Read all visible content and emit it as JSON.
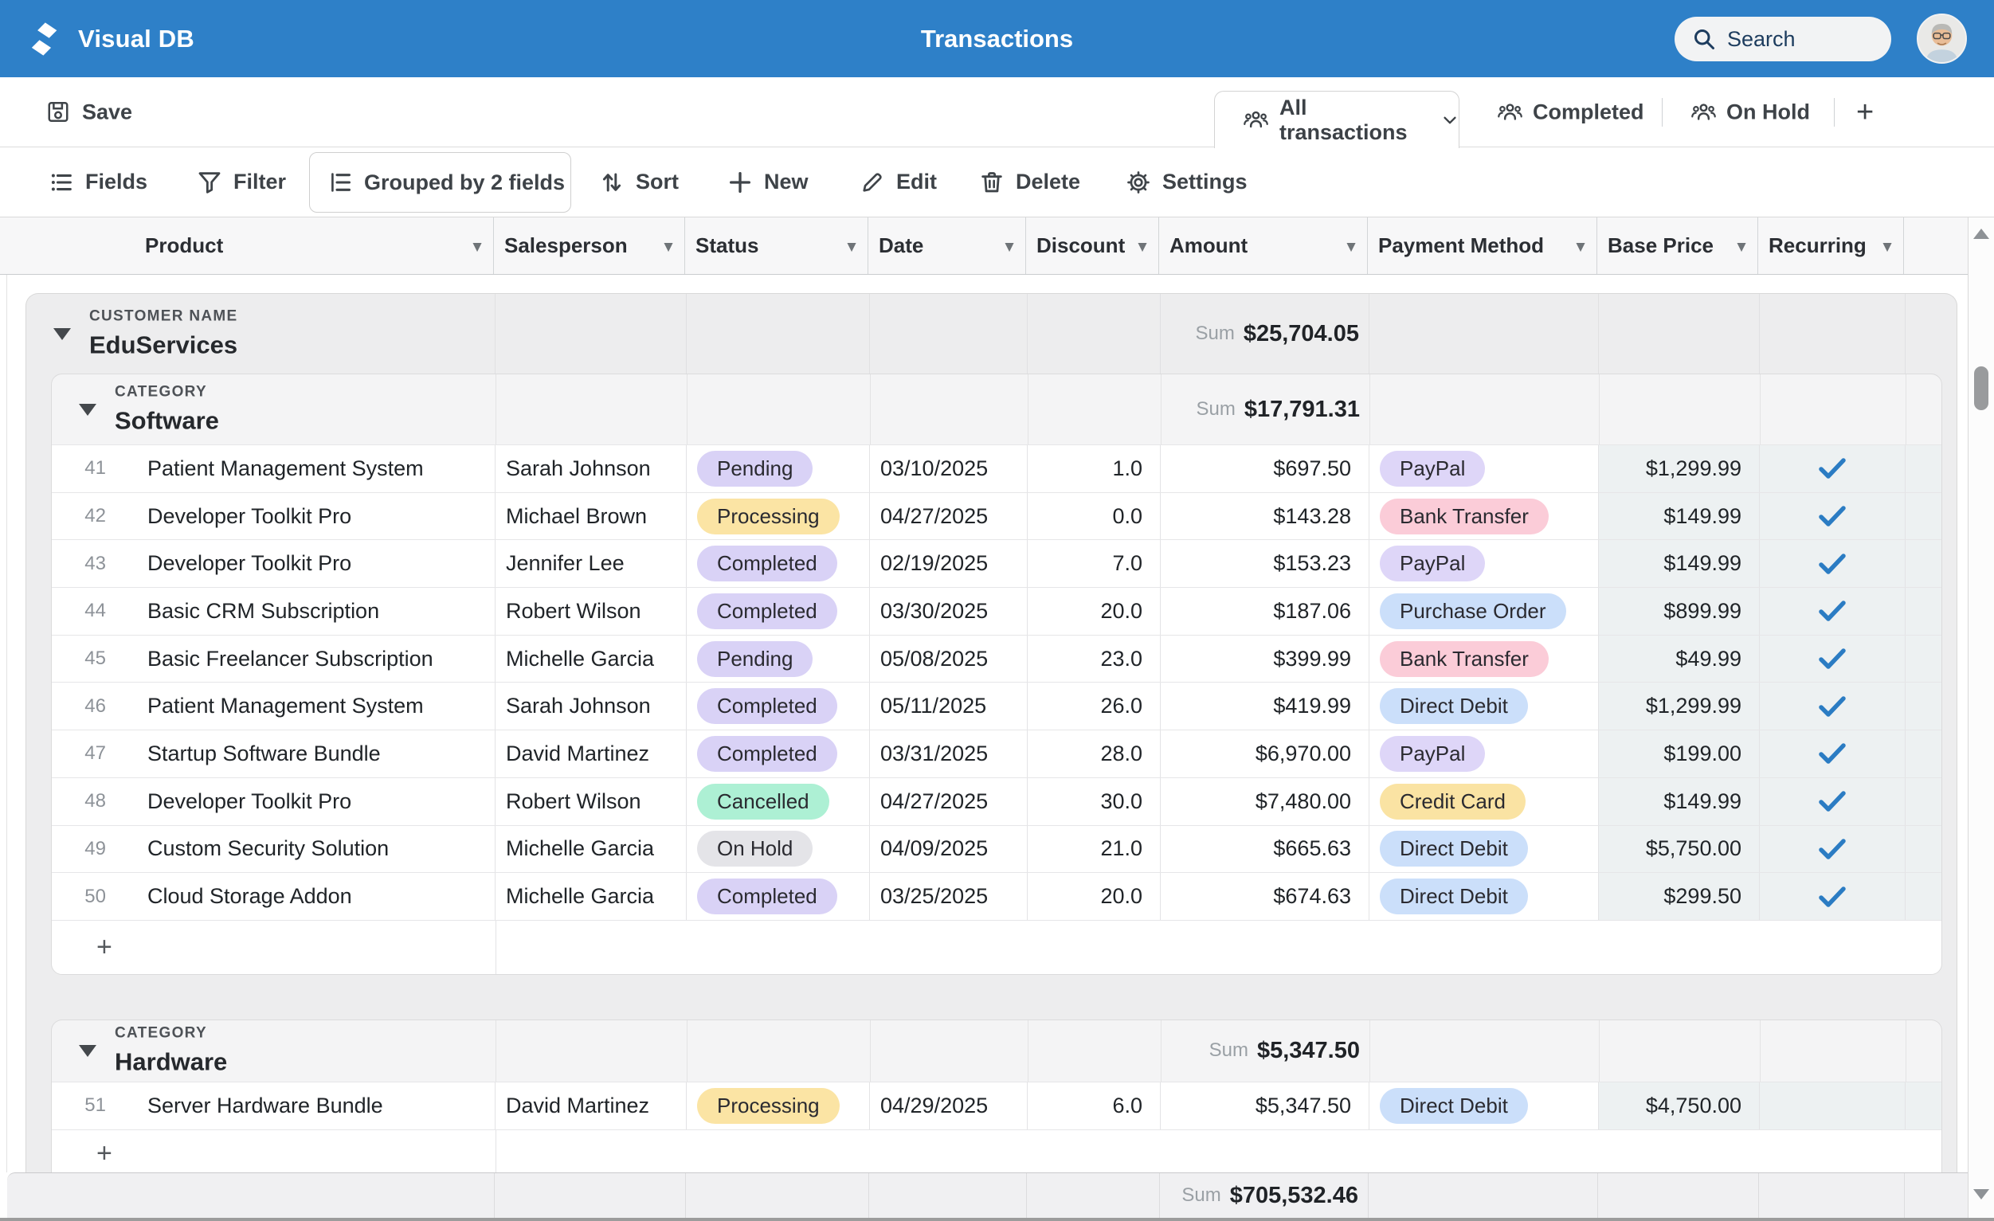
{
  "header": {
    "brand": "Visual DB",
    "title": "Transactions",
    "search_placeholder": "Search"
  },
  "tabbar": {
    "save_label": "Save",
    "tabs": [
      {
        "label": "All transactions",
        "active": true
      },
      {
        "label": "Completed",
        "active": false
      },
      {
        "label": "On Hold",
        "active": false
      }
    ],
    "add_tab_label": "+"
  },
  "toolbar": {
    "items": [
      {
        "icon": "fields-icon",
        "label": "Fields"
      },
      {
        "icon": "filter-icon",
        "label": "Filter"
      },
      {
        "icon": "grouped-icon",
        "label": "Grouped by 2 fields",
        "boxed": true
      },
      {
        "icon": "sort-icon",
        "label": "Sort"
      },
      {
        "icon": "plus-icon",
        "label": "New"
      },
      {
        "icon": "edit-icon",
        "label": "Edit"
      },
      {
        "icon": "delete-icon",
        "label": "Delete"
      },
      {
        "icon": "settings-icon",
        "label": "Settings"
      }
    ]
  },
  "columns": [
    {
      "label": "Product"
    },
    {
      "label": "Salesperson"
    },
    {
      "label": "Status"
    },
    {
      "label": "Date"
    },
    {
      "label": "Discount"
    },
    {
      "label": "Amount"
    },
    {
      "label": "Payment Method"
    },
    {
      "label": "Base Price"
    },
    {
      "label": "Recurring"
    }
  ],
  "colors": {
    "accent_blue": "#2e80c8",
    "check_blue": "#2b7cc3",
    "status": {
      "Pending": "#d9d2f6",
      "Processing": "#fbe4a4",
      "Completed": "#d9d2f6",
      "Cancelled": "#adf0d4",
      "On Hold": "#e4e4e8"
    },
    "payment": {
      "PayPal": "#ded6f8",
      "Bank Transfer": "#fbccd8",
      "Purchase Order": "#cbdffa",
      "Direct Debit": "#cbdffa",
      "Credit Card": "#fae3a3"
    }
  },
  "group": {
    "label": "CUSTOMER NAME",
    "name": "EduServices",
    "sum_label": "Sum",
    "sum": "$25,704.05",
    "subgroups": [
      {
        "label": "CATEGORY",
        "name": "Software",
        "sum_label": "Sum",
        "sum": "$17,791.31",
        "add_row_label": "+",
        "rows": [
          {
            "num": 41,
            "product": "Patient Management System",
            "salesperson": "Sarah Johnson",
            "status": "Pending",
            "date": "03/10/2025",
            "discount": "1.0",
            "amount": "$697.50",
            "payment": "PayPal",
            "base_price": "$1,299.99",
            "recurring": true
          },
          {
            "num": 42,
            "product": "Developer Toolkit Pro",
            "salesperson": "Michael Brown",
            "status": "Processing",
            "date": "04/27/2025",
            "discount": "0.0",
            "amount": "$143.28",
            "payment": "Bank Transfer",
            "base_price": "$149.99",
            "recurring": true
          },
          {
            "num": 43,
            "product": "Developer Toolkit Pro",
            "salesperson": "Jennifer Lee",
            "status": "Completed",
            "date": "02/19/2025",
            "discount": "7.0",
            "amount": "$153.23",
            "payment": "PayPal",
            "base_price": "$149.99",
            "recurring": true
          },
          {
            "num": 44,
            "product": "Basic CRM Subscription",
            "salesperson": "Robert Wilson",
            "status": "Completed",
            "date": "03/30/2025",
            "discount": "20.0",
            "amount": "$187.06",
            "payment": "Purchase Order",
            "base_price": "$899.99",
            "recurring": true
          },
          {
            "num": 45,
            "product": "Basic Freelancer Subscription",
            "salesperson": "Michelle Garcia",
            "status": "Pending",
            "date": "05/08/2025",
            "discount": "23.0",
            "amount": "$399.99",
            "payment": "Bank Transfer",
            "base_price": "$49.99",
            "recurring": true
          },
          {
            "num": 46,
            "product": "Patient Management System",
            "salesperson": "Sarah Johnson",
            "status": "Completed",
            "date": "05/11/2025",
            "discount": "26.0",
            "amount": "$419.99",
            "payment": "Direct Debit",
            "base_price": "$1,299.99",
            "recurring": true
          },
          {
            "num": 47,
            "product": "Startup Software Bundle",
            "salesperson": "David Martinez",
            "status": "Completed",
            "date": "03/31/2025",
            "discount": "28.0",
            "amount": "$6,970.00",
            "payment": "PayPal",
            "base_price": "$199.00",
            "recurring": true
          },
          {
            "num": 48,
            "product": "Developer Toolkit Pro",
            "salesperson": "Robert Wilson",
            "status": "Cancelled",
            "date": "04/27/2025",
            "discount": "30.0",
            "amount": "$7,480.00",
            "payment": "Credit Card",
            "base_price": "$149.99",
            "recurring": true
          },
          {
            "num": 49,
            "product": "Custom Security Solution",
            "salesperson": "Michelle Garcia",
            "status": "On Hold",
            "date": "04/09/2025",
            "discount": "21.0",
            "amount": "$665.63",
            "payment": "Direct Debit",
            "base_price": "$5,750.00",
            "recurring": true
          },
          {
            "num": 50,
            "product": "Cloud Storage Addon",
            "salesperson": "Michelle Garcia",
            "status": "Completed",
            "date": "03/25/2025",
            "discount": "20.0",
            "amount": "$674.63",
            "payment": "Direct Debit",
            "base_price": "$299.50",
            "recurring": true
          }
        ]
      },
      {
        "label": "CATEGORY",
        "name": "Hardware",
        "sum_label": "Sum",
        "sum": "$5,347.50",
        "add_row_label": "+",
        "rows": [
          {
            "num": 51,
            "product": "Server Hardware Bundle",
            "salesperson": "David Martinez",
            "status": "Processing",
            "date": "04/29/2025",
            "discount": "6.0",
            "amount": "$5,347.50",
            "payment": "Direct Debit",
            "base_price": "$4,750.00",
            "recurring": false
          }
        ]
      }
    ]
  },
  "footer": {
    "sum_label": "Sum",
    "sum": "$705,532.46"
  }
}
